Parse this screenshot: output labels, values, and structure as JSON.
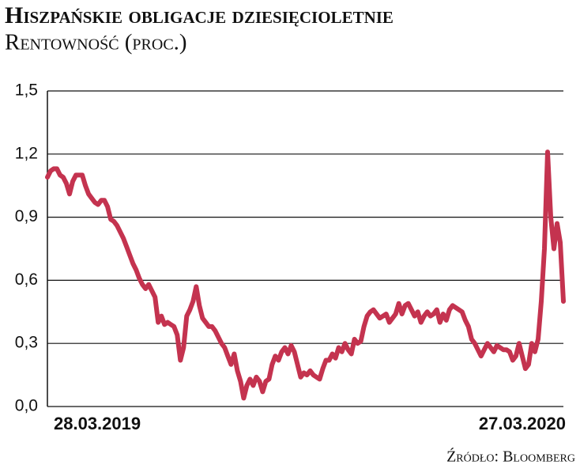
{
  "chart_data": {
    "type": "line",
    "title": "Hiszpańskie obligacje dziesięcioletnie",
    "subtitle": "Rentowność (proc.)",
    "source": "Źródło: Bloomberg",
    "categories": [
      "28.03.2019",
      null,
      null,
      null,
      null,
      null,
      null,
      null,
      null,
      null,
      null,
      null,
      null,
      null,
      null,
      null,
      null,
      null,
      null,
      null,
      null,
      null,
      null,
      null,
      null,
      null,
      null,
      null,
      null,
      null,
      null,
      null,
      null,
      null,
      null,
      null,
      null,
      null,
      null,
      null,
      null,
      null,
      null,
      null,
      null,
      null,
      null,
      null,
      null,
      null,
      null,
      null,
      null,
      null,
      null,
      null,
      null,
      null,
      null,
      null,
      null,
      null,
      null,
      null,
      null,
      null,
      null,
      null,
      null,
      null,
      null,
      null,
      null,
      null,
      null,
      null,
      null,
      null,
      null,
      null,
      null,
      null,
      null,
      null,
      null,
      null,
      null,
      null,
      null,
      null,
      null,
      null,
      null,
      null,
      null,
      null,
      null,
      null,
      null,
      null,
      null,
      null,
      null,
      null,
      null,
      null,
      null,
      null,
      null,
      null,
      null,
      null,
      null,
      null,
      null,
      null,
      null,
      null,
      null,
      null,
      null,
      null,
      null,
      null,
      null,
      null,
      null,
      null,
      null,
      null,
      null,
      null,
      null,
      null,
      null,
      null,
      null,
      null,
      null,
      null,
      null,
      null,
      null,
      null,
      null,
      null,
      null,
      null,
      null,
      null,
      null,
      null,
      null,
      null,
      null,
      null,
      null,
      null,
      null,
      null,
      null,
      null,
      null,
      "27.03.2020"
    ],
    "values": [
      1.09,
      1.12,
      1.13,
      1.13,
      1.1,
      1.09,
      1.06,
      1.01,
      1.07,
      1.1,
      1.1,
      1.1,
      1.05,
      1.01,
      0.99,
      0.97,
      0.96,
      0.98,
      0.98,
      0.95,
      0.89,
      0.88,
      0.86,
      0.83,
      0.8,
      0.76,
      0.72,
      0.68,
      0.65,
      0.61,
      0.58,
      0.56,
      0.58,
      0.55,
      0.52,
      0.4,
      0.43,
      0.39,
      0.4,
      0.39,
      0.38,
      0.34,
      0.22,
      0.28,
      0.43,
      0.46,
      0.5,
      0.57,
      0.48,
      0.42,
      0.4,
      0.38,
      0.38,
      0.36,
      0.33,
      0.3,
      0.28,
      0.24,
      0.2,
      0.25,
      0.17,
      0.12,
      0.04,
      0.1,
      0.13,
      0.1,
      0.14,
      0.12,
      0.07,
      0.12,
      0.13,
      0.2,
      0.24,
      0.22,
      0.26,
      0.28,
      0.25,
      0.29,
      0.26,
      0.2,
      0.14,
      0.16,
      0.15,
      0.17,
      0.15,
      0.14,
      0.13,
      0.18,
      0.22,
      0.22,
      0.25,
      0.23,
      0.28,
      0.26,
      0.3,
      0.27,
      0.25,
      0.32,
      0.3,
      0.31,
      0.38,
      0.43,
      0.45,
      0.46,
      0.44,
      0.42,
      0.43,
      0.44,
      0.4,
      0.42,
      0.44,
      0.49,
      0.44,
      0.48,
      0.49,
      0.46,
      0.43,
      0.45,
      0.4,
      0.43,
      0.45,
      0.43,
      0.44,
      0.46,
      0.4,
      0.44,
      0.41,
      0.46,
      0.48,
      0.47,
      0.46,
      0.45,
      0.41,
      0.38,
      0.32,
      0.3,
      0.27,
      0.24,
      0.27,
      0.3,
      0.28,
      0.26,
      0.29,
      0.28,
      0.27,
      0.27,
      0.26,
      0.22,
      0.24,
      0.3,
      0.24,
      0.18,
      0.2,
      0.3,
      0.26,
      0.32,
      0.5,
      0.75,
      1.21,
      0.9,
      0.75,
      0.87,
      0.78,
      0.5
    ],
    "color": "#c4334f",
    "ylim": [
      0,
      1.5
    ],
    "yticks": [
      {
        "value": 0,
        "label": "0,0"
      },
      {
        "value": 0.3,
        "label": "0,3"
      },
      {
        "value": 0.6,
        "label": "0,6"
      },
      {
        "value": 0.9,
        "label": "0,9"
      },
      {
        "value": 1.2,
        "label": "1,2"
      },
      {
        "value": 1.5,
        "label": "1,5"
      }
    ],
    "grid": true
  }
}
